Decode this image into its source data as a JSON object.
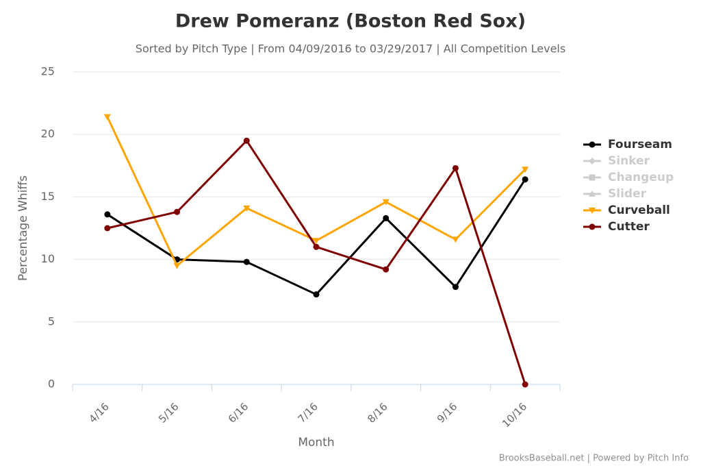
{
  "chart_data": {
    "type": "line",
    "title": "Drew Pomeranz (Boston Red Sox)",
    "subtitle": "Sorted by Pitch Type | From 04/09/2016 to 03/29/2017 | All Competition Levels",
    "x_label": "Month",
    "y_label": "Percentage Whiffs",
    "credit": "BrooksBaseball.net | Powered by Pitch Info",
    "categories": [
      "4/16",
      "5/16",
      "6/16",
      "7/16",
      "8/16",
      "9/16",
      "10/16"
    ],
    "ylim": [
      0,
      25
    ],
    "yticks": [
      0,
      5,
      10,
      15,
      20,
      25
    ],
    "grid": true,
    "legend": "right",
    "series": [
      {
        "name": "Fourseam",
        "color": "#000000",
        "marker": "circle",
        "visible": true,
        "values": [
          13.6,
          10.0,
          9.8,
          7.2,
          13.3,
          7.8,
          16.4
        ]
      },
      {
        "name": "Sinker",
        "color": "#cccccc",
        "marker": "diamond",
        "visible": false,
        "values": [
          null,
          null,
          null,
          null,
          null,
          null,
          null
        ]
      },
      {
        "name": "Changeup",
        "color": "#cccccc",
        "marker": "square",
        "visible": false,
        "values": [
          null,
          null,
          null,
          null,
          null,
          null,
          null
        ]
      },
      {
        "name": "Slider",
        "color": "#cccccc",
        "marker": "triangle",
        "visible": false,
        "values": [
          null,
          null,
          null,
          null,
          null,
          null,
          null
        ]
      },
      {
        "name": "Curveball",
        "color": "#ffa500",
        "marker": "triangle-down",
        "visible": true,
        "values": [
          21.4,
          9.5,
          14.1,
          11.5,
          14.6,
          11.6,
          17.2
        ]
      },
      {
        "name": "Cutter",
        "color": "#800000",
        "marker": "circle",
        "visible": true,
        "values": [
          12.5,
          13.8,
          19.5,
          11.0,
          9.2,
          17.3,
          0
        ]
      }
    ]
  }
}
